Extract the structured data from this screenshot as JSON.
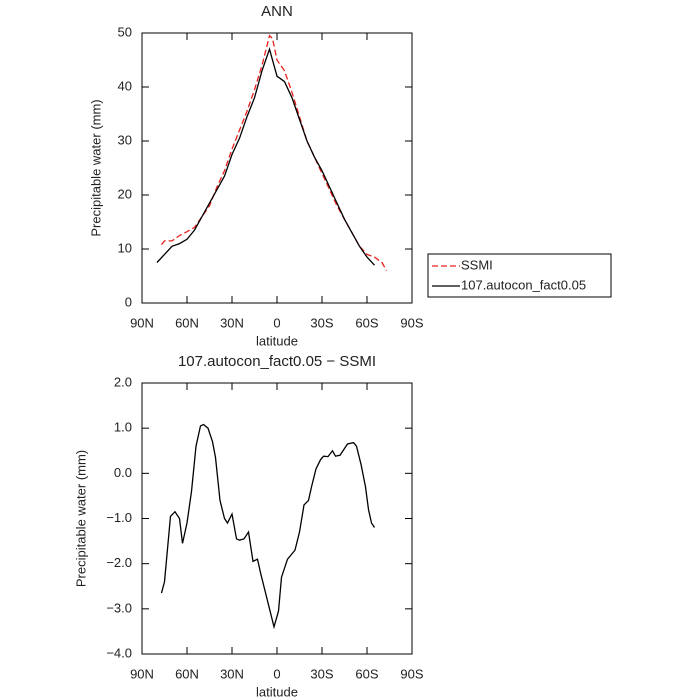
{
  "chart_data": [
    {
      "type": "line",
      "title": "ANN",
      "xlabel": "latitude",
      "ylabel": "Precipitable water (mm)",
      "xlim": [
        90,
        -90
      ],
      "xticks": [
        {
          "value": 90,
          "label": "90N"
        },
        {
          "value": 60,
          "label": "60N"
        },
        {
          "value": 30,
          "label": "30N"
        },
        0,
        {
          "value": -30,
          "label": "30S"
        },
        {
          "value": -60,
          "label": "60S"
        },
        {
          "value": -90,
          "label": "90S"
        }
      ],
      "ylim": [
        0,
        50
      ],
      "yticks": [
        0,
        10,
        20,
        30,
        40,
        50
      ],
      "legend": "right",
      "series": [
        {
          "name": "SSMI",
          "color": "#e8201c",
          "style": "dashed",
          "x": [
            77,
            75,
            70,
            65,
            60,
            55,
            50,
            45,
            40,
            35,
            30,
            25,
            20,
            15,
            10,
            5,
            3,
            0,
            -5,
            -10,
            -15,
            -20,
            -25,
            -30,
            -35,
            -40,
            -45,
            -50,
            -55,
            -60,
            -65,
            -70,
            -73
          ],
          "values": [
            10.8,
            11.5,
            11.5,
            12.5,
            13.2,
            14,
            16,
            18,
            21.5,
            24.5,
            28.5,
            32,
            35.5,
            39.5,
            44,
            49.5,
            49,
            45,
            43,
            39,
            34.5,
            30,
            27,
            24,
            21,
            18,
            15.5,
            13,
            10.5,
            9,
            8.5,
            7.5,
            6
          ]
        },
        {
          "name": "107.autocon_fact0.05",
          "color": "#000000",
          "style": "solid",
          "x": [
            80,
            75,
            70,
            65,
            60,
            55,
            50,
            45,
            40,
            35,
            30,
            25,
            20,
            15,
            10,
            5,
            0,
            -5,
            -10,
            -15,
            -20,
            -25,
            -30,
            -35,
            -40,
            -45,
            -50,
            -55,
            -60,
            -65
          ],
          "values": [
            7.5,
            9,
            10.5,
            11,
            11.8,
            13.5,
            16,
            18.5,
            21,
            23.5,
            27.5,
            30.5,
            34.5,
            38,
            43,
            47,
            42,
            41,
            38,
            34,
            30,
            27,
            24.5,
            21.5,
            18.5,
            15.5,
            13,
            10.5,
            8.5,
            7
          ]
        }
      ]
    },
    {
      "type": "line",
      "title": "107.autocon_fact0.05 − SSMI",
      "xlabel": "latitude",
      "ylabel": "Precipitable water (mm)",
      "xlim": [
        90,
        -90
      ],
      "xticks": [
        {
          "value": 90,
          "label": "90N"
        },
        {
          "value": 60,
          "label": "60N"
        },
        {
          "value": 30,
          "label": "30N"
        },
        0,
        {
          "value": -30,
          "label": "30S"
        },
        {
          "value": -60,
          "label": "60S"
        },
        {
          "value": -90,
          "label": "90S"
        }
      ],
      "ylim": [
        -4,
        2
      ],
      "yticks": [
        {
          "value": -4,
          "label": "−4.0"
        },
        {
          "value": -3,
          "label": "−3.0"
        },
        {
          "value": -2,
          "label": "−2.0"
        },
        {
          "value": -1,
          "label": "−1.0"
        },
        {
          "value": 0,
          "label": "0.0"
        },
        {
          "value": 1,
          "label": "1.0"
        },
        {
          "value": 2,
          "label": "2.0"
        }
      ],
      "series": [
        {
          "color": "#000000",
          "style": "solid",
          "x": [
            77,
            75,
            71,
            68,
            65,
            63,
            60,
            57,
            54,
            51,
            49,
            46,
            43,
            41,
            38,
            35,
            33,
            30,
            27,
            25,
            22,
            19,
            16,
            13,
            11,
            8,
            5,
            2,
            -1,
            -3,
            -7,
            -12,
            -15,
            -18,
            -21,
            -23,
            -26,
            -29,
            -31,
            -34,
            -37,
            -39,
            -42,
            -45,
            -47,
            -51,
            -53,
            -56,
            -59,
            -61,
            -63,
            -65
          ],
          "values": [
            -2.65,
            -2.4,
            -0.95,
            -0.85,
            -1.0,
            -1.55,
            -1.1,
            -0.4,
            0.6,
            1.05,
            1.08,
            1.0,
            0.7,
            0.35,
            -0.6,
            -1.0,
            -1.1,
            -0.9,
            -1.45,
            -1.48,
            -1.45,
            -1.3,
            -1.95,
            -1.9,
            -2.2,
            -2.6,
            -3.0,
            -3.4,
            -3.05,
            -2.3,
            -1.9,
            -1.7,
            -1.3,
            -0.7,
            -0.6,
            -0.3,
            0.1,
            0.3,
            0.38,
            0.37,
            0.5,
            0.38,
            0.4,
            0.55,
            0.65,
            0.68,
            0.6,
            0.2,
            -0.3,
            -0.8,
            -1.1,
            -1.2
          ]
        }
      ]
    }
  ]
}
